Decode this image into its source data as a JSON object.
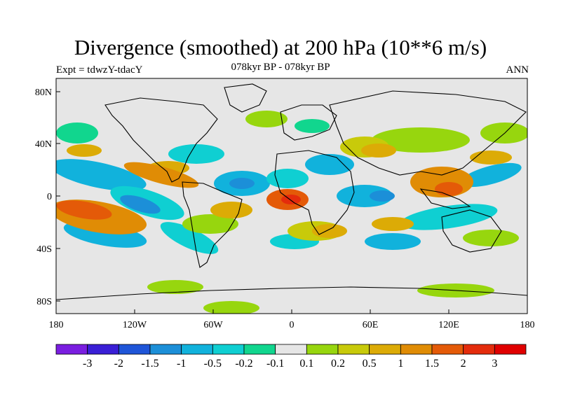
{
  "title": "Divergence (smoothed) at 200 hPa (10**6 m/s)",
  "left_subtitle": "Expt = tdwzY-tdacY",
  "center_subtitle": "078kyr BP - 078kyr BP",
  "right_subtitle": "ANN",
  "lat_labels": [
    "80N",
    "40N",
    "0",
    "40S",
    "80S"
  ],
  "lon_labels": [
    "180",
    "120W",
    "60W",
    "0",
    "60E",
    "120E",
    "180"
  ],
  "colorbar": {
    "colors": [
      "#7a1ee0",
      "#3a1fd6",
      "#1f55d8",
      "#1c8fd8",
      "#11b2dc",
      "#0fcfd2",
      "#11d68e",
      "#e6e6e6",
      "#97d60e",
      "#c8ca0a",
      "#dcab06",
      "#e08c05",
      "#e45a08",
      "#e42c0c",
      "#e00000"
    ],
    "labels": [
      "-3",
      "-2",
      "-1.5",
      "-1",
      "-0.5",
      "-0.2",
      "-0.1",
      "0.1",
      "0.2",
      "0.5",
      "1",
      "1.5",
      "2",
      "3"
    ]
  },
  "colors": {
    "background": "#e6e6e6",
    "coast": "#000000"
  }
}
